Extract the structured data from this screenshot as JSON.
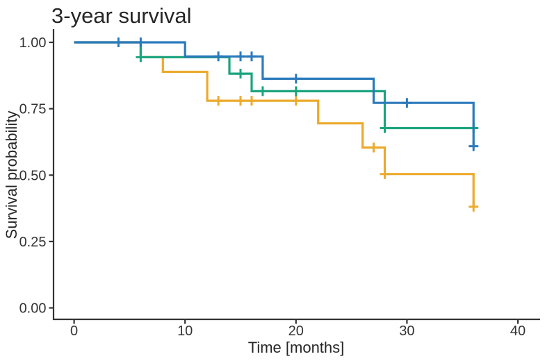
{
  "chart_data": {
    "type": "line",
    "subtype": "kaplan-meier-step",
    "title": "3-year survival",
    "xlabel": "Time [months]",
    "ylabel": "Survival probability",
    "xlim": [
      0,
      40
    ],
    "ylim": [
      0.0,
      1.0
    ],
    "xticks": [
      0,
      10,
      20,
      30,
      40
    ],
    "ytick_labels": [
      "0.00",
      "0.25",
      "0.50",
      "0.75",
      "1.00"
    ],
    "grid": false,
    "legend_position": "none",
    "censor_marker": "plus-tick-icon",
    "series": [
      {
        "name": "orange-group",
        "color": "#ecaa2d",
        "steps": [
          [
            0,
            1.0
          ],
          [
            6,
            0.944
          ],
          [
            8,
            0.889
          ],
          [
            12,
            0.78
          ],
          [
            22,
            0.695
          ],
          [
            26,
            0.604
          ],
          [
            28,
            0.504
          ],
          [
            36,
            0.381
          ]
        ],
        "end_time": 36,
        "censors": [
          [
            13,
            0.78
          ],
          [
            15,
            0.78
          ],
          [
            16,
            0.78
          ],
          [
            20,
            0.78
          ],
          [
            27,
            0.604
          ],
          [
            28,
            0.504
          ],
          [
            36,
            0.381
          ]
        ]
      },
      {
        "name": "green-group",
        "color": "#1ba47e",
        "steps": [
          [
            0,
            1.0
          ],
          [
            6,
            0.944
          ],
          [
            14,
            0.882
          ],
          [
            16,
            0.816
          ],
          [
            28,
            0.677
          ]
        ],
        "end_time": 36,
        "censors": [
          [
            6,
            0.944
          ],
          [
            15,
            0.882
          ],
          [
            17,
            0.816
          ],
          [
            20,
            0.816
          ],
          [
            28,
            0.677
          ],
          [
            36,
            0.677
          ]
        ]
      },
      {
        "name": "blue-group",
        "color": "#2b7abc",
        "steps": [
          [
            0,
            1.0
          ],
          [
            10,
            0.947
          ],
          [
            17,
            0.863
          ],
          [
            27,
            0.772
          ],
          [
            36,
            0.609
          ]
        ],
        "end_time": 36,
        "censors": [
          [
            4,
            1.0
          ],
          [
            6,
            1.0
          ],
          [
            13,
            0.947
          ],
          [
            15,
            0.947
          ],
          [
            16,
            0.947
          ],
          [
            20,
            0.863
          ],
          [
            30,
            0.772
          ],
          [
            36,
            0.609
          ]
        ]
      }
    ],
    "style": {
      "axis_color": "#333333",
      "title_color": "#262626",
      "tick_text_color": "#333333",
      "background": "#ffffff"
    }
  }
}
